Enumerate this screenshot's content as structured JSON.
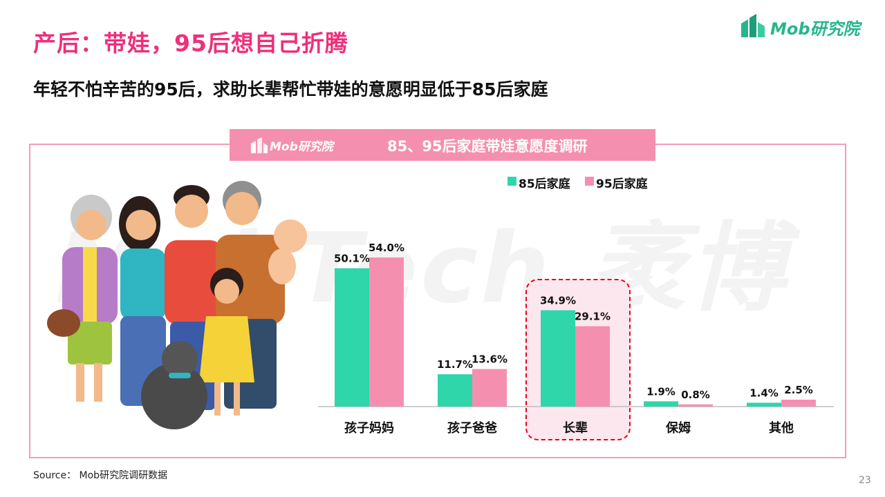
{
  "title": "产后：带娃，95后想自己折腾",
  "subtitle": "年轻不怕辛苦的95后，求助长辈帮忙带娃的意愿明显低于85后家庭",
  "brand": {
    "logo_text": "Mob研究院",
    "icon": "building-bars-icon"
  },
  "panel": {
    "header_logo_text": "Mob研究院"
  },
  "watermark": "MobTech 袤博",
  "source": "Source： Mob研究院调研数据",
  "page_number": "23",
  "colors": {
    "accent_pink": "#ee2f7c",
    "series_85": "#2fd6aa",
    "series_95": "#f58fb0",
    "highlight_border": "#e5001a",
    "header_bg": "#f58fb0"
  },
  "chart_data": {
    "type": "bar",
    "title": "85、95后家庭带娃意愿度调研",
    "xlabel": "",
    "ylabel": "",
    "categories": [
      "孩子妈妈",
      "孩子爸爸",
      "长辈",
      "保姆",
      "其他"
    ],
    "series": [
      {
        "name": "85后家庭",
        "values": [
          50.1,
          11.7,
          34.9,
          1.9,
          1.4
        ],
        "labels": [
          "50.1%",
          "11.7%",
          "34.9%",
          "1.9%",
          "1.4%"
        ],
        "color": "#2fd6aa"
      },
      {
        "name": "95后家庭",
        "values": [
          54.0,
          13.6,
          29.1,
          0.8,
          2.5
        ],
        "labels": [
          "54.0%",
          "13.6%",
          "29.1%",
          "0.8%",
          "2.5%"
        ],
        "color": "#f58fb0"
      }
    ],
    "ylim": [
      0,
      60
    ],
    "grid": false,
    "legend_position": "top",
    "highlighted_category": "长辈",
    "value_unit": "%"
  }
}
